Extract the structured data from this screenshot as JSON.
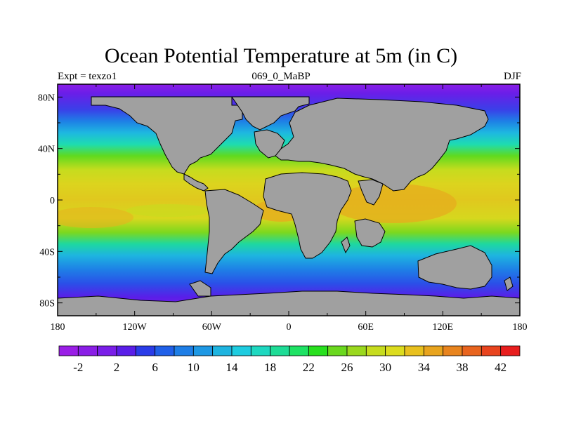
{
  "title": "Ocean Potential Temperature at 5m (in C)",
  "subtitle_left": "Expt = texzo1",
  "subtitle_center": "069_0_MaBP",
  "subtitle_right": "DJF",
  "map": {
    "projection": "cylindrical equidistant",
    "lon_range": [
      -180,
      180
    ],
    "lat_range": [
      -90,
      90
    ],
    "land_color": "#a0a0a0",
    "x_ticks": [
      {
        "value": -180,
        "label": "180"
      },
      {
        "value": -120,
        "label": "120W"
      },
      {
        "value": -60,
        "label": "60W"
      },
      {
        "value": 0,
        "label": "0"
      },
      {
        "value": 60,
        "label": "60E"
      },
      {
        "value": 120,
        "label": "120E"
      },
      {
        "value": 180,
        "label": "180"
      }
    ],
    "y_ticks": [
      {
        "value": 80,
        "label": "80N"
      },
      {
        "value": 40,
        "label": "40N"
      },
      {
        "value": 0,
        "label": "0"
      },
      {
        "value": -40,
        "label": "40S"
      },
      {
        "value": -80,
        "label": "80S"
      }
    ]
  },
  "colorbar": {
    "colors": [
      "#9a1ee6",
      "#8a1ee6",
      "#7a1ee8",
      "#5a1ee8",
      "#2a3ce8",
      "#2060e8",
      "#1e7ee6",
      "#1e98e4",
      "#1eb4e0",
      "#1ecce0",
      "#1ed8c0",
      "#1edc96",
      "#1ee264",
      "#28e01e",
      "#6ad81e",
      "#9ad81e",
      "#c6dc1e",
      "#dcdc1e",
      "#e8c01e",
      "#e8a41e",
      "#e8841e",
      "#e8641e",
      "#e8441e",
      "#e81e1e"
    ],
    "labels": [
      "-2",
      "2",
      "6",
      "10",
      "14",
      "18",
      "22",
      "26",
      "30",
      "34",
      "38",
      "42"
    ]
  }
}
